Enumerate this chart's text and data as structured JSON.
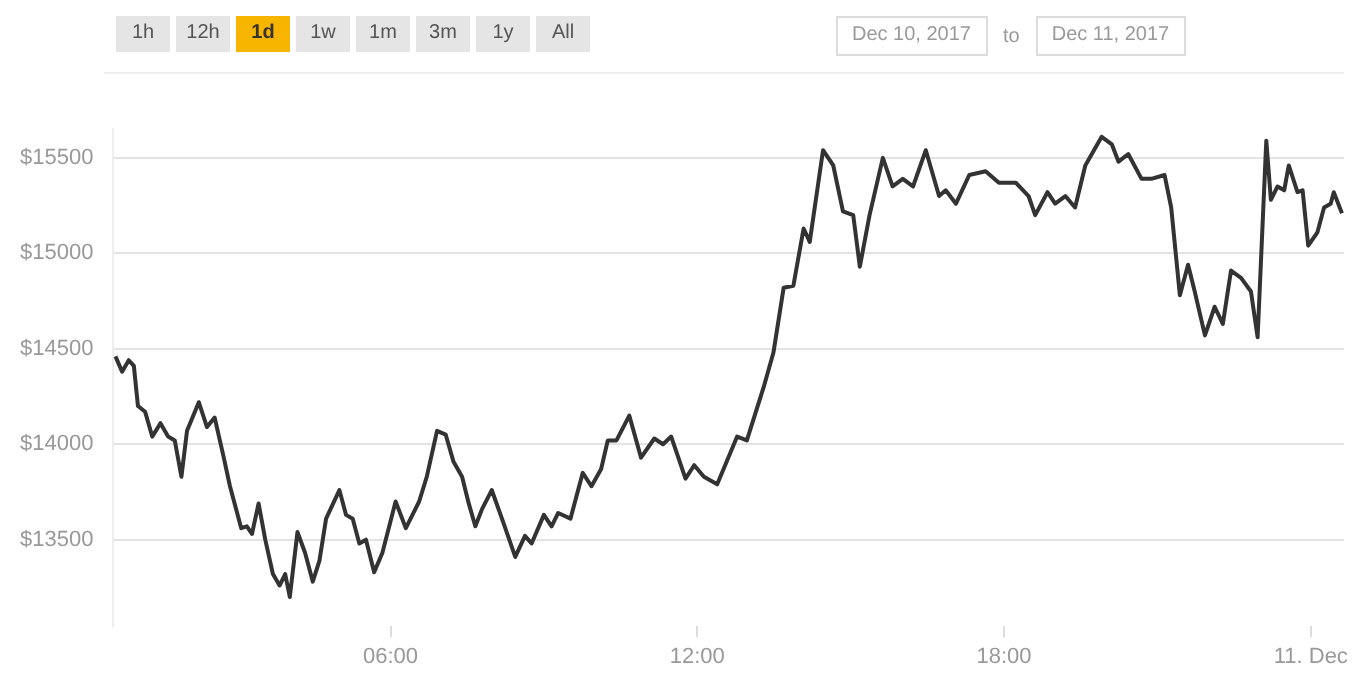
{
  "chart_data": {
    "type": "line",
    "annotations": [
      "1h",
      "12h",
      "1d",
      "1w",
      "1m",
      "3m",
      "1y",
      "All",
      "Dec 10, 2017",
      "to",
      "Dec 11, 2017"
    ],
    "x": [
      0.62,
      0.75,
      0.88,
      0.98,
      1.06,
      1.2,
      1.34,
      1.5,
      1.65,
      1.78,
      1.91,
      2.02,
      2.25,
      2.41,
      2.56,
      2.73,
      2.86,
      3.08,
      3.19,
      3.29,
      3.42,
      3.55,
      3.7,
      3.83,
      3.94,
      4.03,
      4.18,
      4.33,
      4.48,
      4.61,
      4.74,
      5.0,
      5.13,
      5.26,
      5.39,
      5.52,
      5.68,
      5.84,
      6.1,
      6.3,
      6.56,
      6.71,
      6.91,
      7.08,
      7.23,
      7.4,
      7.53,
      7.66,
      7.79,
      7.98,
      8.18,
      8.44,
      8.63,
      8.76,
      9.0,
      9.15,
      9.28,
      9.52,
      9.76,
      9.93,
      10.12,
      10.25,
      10.42,
      10.67,
      10.9,
      11.16,
      11.33,
      11.49,
      11.77,
      11.94,
      12.13,
      12.39,
      12.78,
      12.97,
      13.3,
      13.49,
      13.69,
      13.88,
      14.08,
      14.2,
      14.46,
      14.66,
      14.85,
      15.05,
      15.18,
      15.37,
      15.63,
      15.82,
      16.02,
      16.22,
      16.47,
      16.73,
      16.86,
      17.06,
      17.32,
      17.64,
      17.9,
      18.23,
      18.48,
      18.61,
      18.85,
      19.0,
      19.2,
      19.39,
      19.59,
      19.91,
      20.11,
      20.24,
      20.43,
      20.69,
      20.88,
      21.14,
      21.27,
      21.44,
      21.6,
      21.73,
      21.93,
      22.12,
      22.28,
      22.44,
      22.64,
      22.83,
      22.96,
      23.13,
      23.22,
      23.35,
      23.48,
      23.57,
      23.74,
      23.84,
      23.95,
      24.13,
      24.26,
      24.39,
      24.45,
      24.61
    ],
    "series": [
      {
        "color": "#333333",
        "values": [
          14460,
          14380,
          14440,
          14410,
          14200,
          14170,
          14040,
          14110,
          14040,
          14020,
          13830,
          14070,
          14220,
          14090,
          14140,
          13940,
          13780,
          13560,
          13570,
          13530,
          13690,
          13500,
          13320,
          13260,
          13320,
          13200,
          13540,
          13430,
          13280,
          13390,
          13610,
          13760,
          13630,
          13610,
          13480,
          13500,
          13330,
          13430,
          13700,
          13560,
          13700,
          13830,
          14070,
          14050,
          13910,
          13830,
          13690,
          13570,
          13660,
          13760,
          13610,
          13410,
          13520,
          13480,
          13630,
          13570,
          13640,
          13610,
          13850,
          13780,
          13870,
          14020,
          14020,
          14150,
          13930,
          14030,
          14000,
          14040,
          13820,
          13890,
          13830,
          13790,
          14040,
          14020,
          14300,
          14480,
          14820,
          14830,
          15130,
          15060,
          15540,
          15460,
          15220,
          15200,
          14930,
          15200,
          15500,
          15350,
          15390,
          15350,
          15540,
          15300,
          15330,
          15260,
          15410,
          15430,
          15370,
          15370,
          15300,
          15200,
          15320,
          15260,
          15300,
          15240,
          15460,
          15610,
          15570,
          15480,
          15520,
          15390,
          15390,
          15410,
          15240,
          14780,
          14940,
          14800,
          14570,
          14720,
          14630,
          14910,
          14870,
          14800,
          14560,
          15590,
          15280,
          15350,
          15330,
          15460,
          15320,
          15330,
          15040,
          15110,
          15240,
          15260,
          15320,
          15210
        ]
      }
    ],
    "xlim": [
      0.58,
      24.65
    ],
    "xticks": [
      {
        "value": 6,
        "label": "06:00"
      },
      {
        "value": 12,
        "label": "12:00"
      },
      {
        "value": 18,
        "label": "18:00"
      },
      {
        "value": 24,
        "label": "11. Dec"
      }
    ],
    "ylim": [
      13050,
      15650
    ],
    "yticks": [
      {
        "value": 13500,
        "label": "$13500"
      },
      {
        "value": 14000,
        "label": "$14000"
      },
      {
        "value": 14500,
        "label": "$14500"
      },
      {
        "value": 15000,
        "label": "$15000"
      },
      {
        "value": 15500,
        "label": "$15500"
      }
    ],
    "grid": "y",
    "marker": "none",
    "line_style": "solid"
  }
}
